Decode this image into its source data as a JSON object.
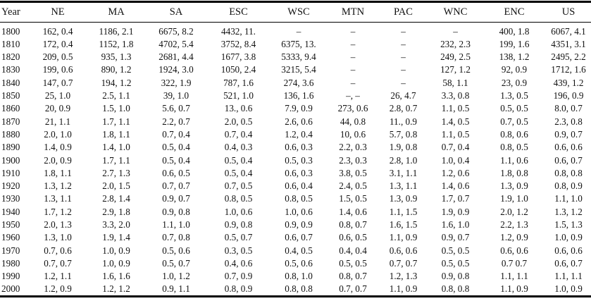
{
  "table": {
    "columns": [
      "Year",
      "NE",
      "MA",
      "SA",
      "ESC",
      "WSC",
      "MTN",
      "PAC",
      "WNC",
      "ENC",
      "US"
    ],
    "rows": [
      {
        "year": "1800",
        "cells": [
          "162, 0.4",
          "1186, 2.1",
          "6675, 8.2",
          "4432, 11.",
          "–",
          "–",
          "–",
          "–",
          "400, 1.8",
          "6067, 4.1"
        ]
      },
      {
        "year": "1810",
        "cells": [
          "172, 0.4",
          "1152, 1.8",
          "4702, 5.4",
          "3752, 8.4",
          "6375, 13.",
          "–",
          "–",
          "232, 2.3",
          "199, 1.6",
          "4351, 3.1"
        ]
      },
      {
        "year": "1820",
        "cells": [
          "209, 0.5",
          "935, 1.3",
          "2681, 4.4",
          "1677, 3.8",
          "5333, 9.4",
          "–",
          "–",
          "249, 2.5",
          "138, 1.2",
          "2495, 2.2"
        ]
      },
      {
        "year": "1830",
        "cells": [
          "199, 0.6",
          "890, 1.2",
          "1924, 3.0",
          "1050, 2.4",
          "3215, 5.4",
          "–",
          "–",
          "127, 1.2",
          "92, 0.9",
          "1712, 1.6"
        ]
      },
      {
        "year": "1840",
        "cells": [
          "147, 0.7",
          "194, 1.2",
          "322, 1.9",
          "787, 1.6",
          "274, 3.6",
          "–",
          "–",
          "58, 1.1",
          "23, 0.9",
          "439, 1.2"
        ]
      },
      {
        "year": "1850",
        "cells": [
          "25, 1.0",
          "2.5, 1.1",
          "39, 1.0",
          "521, 1.0",
          "136, 1.6",
          "–, –",
          "26, 4.7",
          "3.3, 0.8",
          "1.3, 0.5",
          "196, 0.9"
        ]
      },
      {
        "year": "1860",
        "cells": [
          "20, 0.9",
          "1.5, 1.0",
          "5.6, 0.7",
          "13., 0.6",
          "7.9, 0.9",
          "273, 0.6",
          "2.8, 0.7",
          "1.1, 0.5",
          "0.5, 0.5",
          "8.0, 0.7"
        ]
      },
      {
        "year": "1870",
        "cells": [
          "21, 1.1",
          "1.7, 1.1",
          "2.2, 0.7",
          "2.0, 0.5",
          "2.6, 0.6",
          "44, 0.8",
          "11., 0.9",
          "1.4, 0.5",
          "0.7, 0.5",
          "2.3, 0.8"
        ]
      },
      {
        "year": "1880",
        "cells": [
          "2.0, 1.0",
          "1.8, 1.1",
          "0.7, 0.4",
          "0.7, 0.4",
          "1.2, 0.4",
          "10, 0.6",
          "5.7, 0.8",
          "1.1, 0.5",
          "0.8, 0.6",
          "0.9, 0.7"
        ]
      },
      {
        "year": "1890",
        "cells": [
          "1.4, 0.9",
          "1.4, 1.0",
          "0.5, 0.4",
          "0.4, 0.3",
          "0.6, 0.3",
          "2.2, 0.3",
          "1.9, 0.8",
          "0.7, 0.4",
          "0.8, 0.5",
          "0.6, 0.6"
        ]
      },
      {
        "year": "1900",
        "cells": [
          "2.0, 0.9",
          "1.7, 1.1",
          "0.5, 0.4",
          "0.5, 0.4",
          "0.5, 0.3",
          "2.3, 0.3",
          "2.8, 1.0",
          "1.0, 0.4",
          "1.1, 0.6",
          "0.6, 0.7"
        ]
      },
      {
        "year": "1910",
        "cells": [
          "1.8, 1.1",
          "2.7, 1.3",
          "0.6, 0.5",
          "0.5, 0.4",
          "0.6, 0.3",
          "3.8, 0.5",
          "3.1, 1.1",
          "1.2, 0.6",
          "1.8, 0.8",
          "0.8, 0.8"
        ]
      },
      {
        "year": "1920",
        "cells": [
          "1.3, 1.2",
          "2.0, 1.5",
          "0.7, 0.7",
          "0.7, 0.5",
          "0.6, 0.4",
          "2.4, 0.5",
          "1.3, 1.1",
          "1.4, 0.6",
          "1.3, 0.9",
          "0.8, 0.9"
        ]
      },
      {
        "year": "1930",
        "cells": [
          "1.3, 1.1",
          "2.8, 1.4",
          "0.9, 0.7",
          "0.8, 0.5",
          "0.8, 0.5",
          "1.5, 0.5",
          "1.3, 0.9",
          "1.7, 0.7",
          "1.9, 1.0",
          "1.1, 1.0"
        ]
      },
      {
        "year": "1940",
        "cells": [
          "1.7, 1.2",
          "2.9, 1.8",
          "0.9, 0.8",
          "1.0, 0.6",
          "1.0, 0.6",
          "1.4, 0.6",
          "1.1, 1.5",
          "1.9, 0.9",
          "2.0, 1.2",
          "1.3, 1.2"
        ]
      },
      {
        "year": "1950",
        "cells": [
          "2.0, 1.3",
          "3.3, 2.0",
          "1.1, 1.0",
          "0.9, 0.8",
          "0.9, 0.9",
          "0.8, 0.7",
          "1.6, 1.5",
          "1.6, 1.0",
          "2.2, 1.3",
          "1.5, 1.3"
        ]
      },
      {
        "year": "1960",
        "cells": [
          "1.3, 1.0",
          "1.9, 1.4",
          "0.7, 0.8",
          "0.5, 0.7",
          "0.6, 0.7",
          "0.6, 0.5",
          "1.1, 0.9",
          "0.9, 0.7",
          "1.2, 0.9",
          "1.0, 0.9"
        ]
      },
      {
        "year": "1970",
        "cells": [
          "0.7, 0.6",
          "1.0, 0.9",
          "0.5, 0.6",
          "0.3, 0.5",
          "0.4, 0.5",
          "0.4, 0.4",
          "0.6, 0.6",
          "0.5, 0.5",
          "0.6, 0.6",
          "0.6, 0.6"
        ]
      },
      {
        "year": "1980",
        "cells": [
          "0.7, 0.7",
          "1.0, 0.9",
          "0.5, 0.7",
          "0.4, 0.6",
          "0.5, 0.6",
          "0.5, 0.5",
          "0.7, 0.7",
          "0.5, 0.5",
          "0.7 0.7",
          "0.6, 0.7"
        ]
      },
      {
        "year": "1990",
        "cells": [
          "1.2, 1.1",
          "1.6, 1.6",
          "1.0, 1.2",
          "0.7, 0.9",
          "0.8, 1.0",
          "0.8, 0.7",
          "1.2, 1.3",
          "0.9, 0.8",
          "1.1, 1.1",
          "1.1, 1.1"
        ]
      },
      {
        "year": "2000",
        "cells": [
          "1.2, 0.9",
          "1.2, 1.2",
          "0.9, 1.1",
          "0.8, 0.9",
          "0.8, 0.8",
          "0.7, 0.7",
          "1.1, 0.9",
          "0.8, 0.8",
          "1.1, 0.9",
          "1.0, 0.9"
        ]
      }
    ]
  },
  "colors": {
    "rule": "#000000",
    "text": "#111111",
    "background": "#ffffff"
  }
}
